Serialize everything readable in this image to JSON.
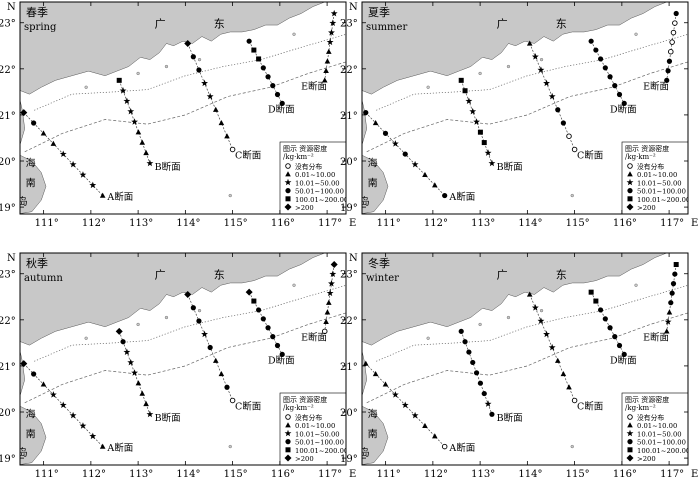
{
  "panels": [
    {
      "season_cn": "春季",
      "season_en": "spring",
      "x_ticks": [
        "111°",
        "112°",
        "113°",
        "114°",
        "115°",
        "116°",
        "117°"
      ],
      "y_ticks": [
        "23°",
        "22°",
        "21°",
        "20°",
        "19°"
      ],
      "sections": [
        {
          "name": "A断面",
          "symbols": [
            "filled_diamond",
            "filled_circle",
            "filled_triangle",
            "filled_triangle",
            "star",
            "star",
            "star",
            "star",
            "filled_triangle"
          ]
        },
        {
          "name": "B断面",
          "symbols": [
            "filled_square",
            "star",
            "star",
            "star",
            "star",
            "filled_triangle",
            "filled_triangle",
            "filled_triangle",
            "star"
          ]
        },
        {
          "name": "C断面",
          "symbols": [
            "filled_diamond",
            "filled_circle",
            "filled_circle",
            "star",
            "star",
            "filled_triangle",
            "filled_triangle",
            "filled_triangle",
            "open_circle"
          ]
        },
        {
          "name": "D断面",
          "symbols": [
            "filled_circle",
            "filled_square",
            "filled_square",
            "filled_circle",
            "filled_circle",
            "filled_circle",
            "filled_circle",
            "filled_circle"
          ]
        },
        {
          "name": "E断面",
          "symbols": [
            "star",
            "star",
            "star",
            "star",
            "filled_triangle",
            "filled_triangle",
            "filled_triangle",
            "filled_triangle"
          ]
        }
      ]
    },
    {
      "season_cn": "夏季",
      "season_en": "summer",
      "x_ticks": [
        "111°",
        "112°",
        "113°",
        "114°",
        "115°",
        "116°",
        "117°"
      ],
      "y_ticks": [
        "23°",
        "22°",
        "21°",
        "20°",
        "19°"
      ],
      "sections": [
        {
          "name": "A断面",
          "symbols": [
            "filled_circle",
            "filled_triangle",
            "filled_circle",
            "star",
            "filled_circle",
            "star",
            "filled_triangle",
            "filled_triangle",
            "filled_circle"
          ]
        },
        {
          "name": "B断面",
          "symbols": [
            "filled_square",
            "filled_square",
            "star",
            "star",
            "star",
            "filled_square",
            "filled_square",
            "star",
            "star"
          ]
        },
        {
          "name": "C断面",
          "symbols": [
            "filled_triangle",
            "star",
            "star",
            "star",
            "star",
            "filled_circle",
            "filled_circle",
            "open_circle",
            "open_circle"
          ]
        },
        {
          "name": "D断面",
          "symbols": [
            "filled_circle",
            "filled_circle",
            "filled_circle",
            "filled_circle",
            "filled_circle",
            "filled_circle",
            "filled_circle",
            "filled_circle"
          ]
        },
        {
          "name": "E断面",
          "symbols": [
            "filled_circle",
            "open_circle",
            "open_circle",
            "open_circle",
            "open_circle",
            "filled_circle",
            "filled_circle",
            "filled_circle"
          ]
        }
      ]
    },
    {
      "season_cn": "秋季",
      "season_en": "autumn",
      "x_ticks": [
        "111°",
        "112°",
        "113°",
        "114°",
        "115°",
        "116°",
        "117°"
      ],
      "y_ticks": [
        "23°",
        "22°",
        "21°",
        "20°",
        "19°"
      ],
      "sections": [
        {
          "name": "A断面",
          "symbols": [
            "filled_diamond",
            "filled_circle",
            "filled_triangle",
            "star",
            "star",
            "star",
            "star",
            "star",
            "filled_triangle"
          ]
        },
        {
          "name": "B断面",
          "symbols": [
            "filled_diamond",
            "filled_circle",
            "star",
            "star",
            "star",
            "filled_triangle",
            "filled_triangle",
            "filled_triangle",
            "star"
          ]
        },
        {
          "name": "C断面",
          "symbols": [
            "filled_diamond",
            "filled_circle",
            "filled_circle",
            "star",
            "filled_circle",
            "filled_triangle",
            "filled_triangle",
            "filled_circle",
            "open_circle"
          ]
        },
        {
          "name": "D断面",
          "symbols": [
            "filled_diamond",
            "filled_square",
            "filled_circle",
            "filled_circle",
            "filled_circle",
            "filled_circle",
            "filled_circle",
            "filled_circle"
          ]
        },
        {
          "name": "E断面",
          "symbols": [
            "filled_diamond",
            "star",
            "star",
            "star",
            "filled_triangle",
            "filled_triangle",
            "filled_triangle",
            "open_circle"
          ]
        }
      ]
    },
    {
      "season_cn": "冬季",
      "season_en": "winter",
      "x_ticks": [
        "111°",
        "112°",
        "113°",
        "114°",
        "115°",
        "116°",
        "117°"
      ],
      "y_ticks": [
        "23°",
        "22°",
        "21°",
        "20°",
        "19°"
      ],
      "sections": [
        {
          "name": "A断面",
          "symbols": [
            "filled_triangle",
            "filled_triangle",
            "filled_triangle",
            "star",
            "star",
            "star",
            "filled_triangle",
            "filled_triangle",
            "open_circle"
          ]
        },
        {
          "name": "B断面",
          "symbols": [
            "filled_circle",
            "filled_circle",
            "filled_circle",
            "filled_circle",
            "filled_circle",
            "filled_circle",
            "filled_circle",
            "star",
            "filled_circle"
          ]
        },
        {
          "name": "C断面",
          "symbols": [
            "filled_triangle",
            "star",
            "star",
            "star",
            "star",
            "filled_triangle",
            "filled_triangle",
            "filled_triangle",
            "open_circle"
          ]
        },
        {
          "name": "D断面",
          "symbols": [
            "filled_square",
            "filled_square",
            "filled_circle",
            "filled_circle",
            "filled_circle",
            "filled_circle",
            "filled_circle",
            "filled_circle"
          ]
        },
        {
          "name": "E断面",
          "symbols": [
            "filled_square",
            "filled_circle",
            "filled_circle",
            "filled_circle",
            "filled_circle",
            "filled_triangle",
            "star",
            "filled_triangle"
          ]
        }
      ]
    }
  ],
  "land_labels": {
    "guang": "广",
    "dong": "东",
    "hai": "海",
    "nan": "南",
    "dao": "岛"
  },
  "axis": {
    "north": "N",
    "east": "E"
  },
  "legend": {
    "title": "图示  资源密度",
    "unit": "/kg·km⁻²",
    "entries": [
      {
        "symbol": "open_circle",
        "label": "没有分布"
      },
      {
        "symbol": "filled_triangle",
        "label": "0.01~10.00"
      },
      {
        "symbol": "star",
        "label": "10.01~50.00"
      },
      {
        "symbol": "filled_circle",
        "label": "50.01~100.00"
      },
      {
        "symbol": "filled_square",
        "label": "100.01~200.00"
      },
      {
        "symbol": "filled_diamond",
        "label": ">200"
      }
    ]
  },
  "colors": {
    "land": "#c8c8c8",
    "sea": "#ffffff",
    "frame": "#000000"
  }
}
